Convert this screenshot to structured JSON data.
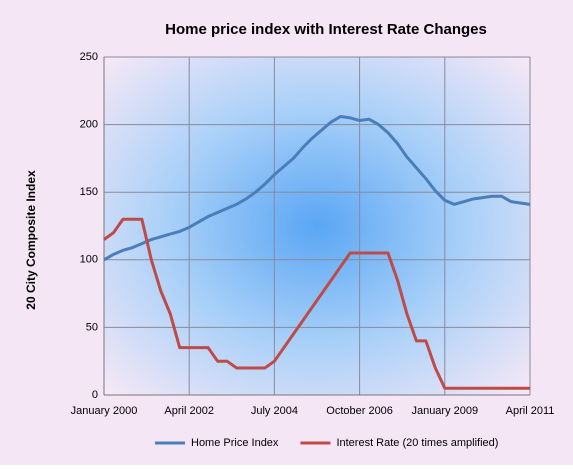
{
  "chart_data": {
    "type": "line",
    "title": "Home price index with Interest Rate Changes",
    "y_label": "20 City Composite Index",
    "categories": [
      "January 2000",
      null,
      null,
      null,
      null,
      null,
      null,
      null,
      null,
      "April 2002",
      null,
      null,
      null,
      null,
      null,
      null,
      null,
      null,
      "July 2004",
      null,
      null,
      null,
      null,
      null,
      null,
      null,
      null,
      "October 2006",
      null,
      null,
      null,
      null,
      null,
      null,
      null,
      null,
      "January 2009",
      null,
      null,
      null,
      null,
      null,
      null,
      null,
      null,
      "April 2011"
    ],
    "series": [
      {
        "name": "Home Price Index",
        "color": "#4a7ebb",
        "values": [
          100,
          104,
          107,
          109,
          112,
          115,
          117,
          119,
          121,
          124,
          128,
          132,
          135,
          138,
          141,
          145,
          150,
          156,
          163,
          169,
          175,
          183,
          190,
          196,
          202,
          206,
          205,
          203,
          204,
          200,
          194,
          186,
          176,
          168,
          160,
          151,
          144,
          141,
          143,
          145,
          146,
          147,
          147,
          143,
          142,
          141
        ]
      },
      {
        "name": "Interest Rate (20 times amplified)",
        "color": "#be4b48",
        "values": [
          115,
          120,
          130,
          130,
          130,
          100,
          77,
          60,
          35,
          35,
          35,
          35,
          25,
          25,
          20,
          20,
          20,
          20,
          25,
          35,
          45,
          55,
          65,
          75,
          85,
          95,
          105,
          105,
          105,
          105,
          105,
          85,
          60,
          40,
          40,
          20,
          5,
          5,
          5,
          5,
          5,
          5,
          5,
          5,
          5,
          5
        ]
      }
    ],
    "ylim": [
      0,
      250
    ],
    "yticks": [
      0,
      50,
      100,
      150,
      200,
      250
    ],
    "grid": true,
    "legend": "bottom"
  }
}
